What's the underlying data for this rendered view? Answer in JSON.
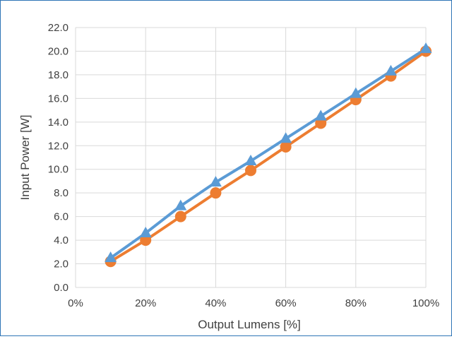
{
  "chart_data": {
    "type": "line",
    "title": "",
    "xlabel": "Output Lumens [%]",
    "ylabel": "Input Power [W]",
    "xlim": [
      0,
      100
    ],
    "ylim": [
      0,
      22
    ],
    "x_ticks": [
      "0%",
      "20%",
      "40%",
      "60%",
      "80%",
      "100%"
    ],
    "y_ticks": [
      "0.0",
      "2.0",
      "4.0",
      "6.0",
      "8.0",
      "10.0",
      "12.0",
      "14.0",
      "16.0",
      "18.0",
      "20.0",
      "22.0"
    ],
    "grid": true,
    "legend": "none",
    "x": [
      10,
      20,
      30,
      40,
      50,
      60,
      70,
      80,
      90,
      100
    ],
    "series": [
      {
        "marker": "circle",
        "color": "#ed7d31",
        "values": [
          2.2,
          4.0,
          6.0,
          8.0,
          9.9,
          11.9,
          13.9,
          15.9,
          17.9,
          20.0
        ]
      },
      {
        "marker": "triangle",
        "color": "#5b9bd5",
        "values": [
          2.5,
          4.6,
          6.9,
          8.9,
          10.7,
          12.6,
          14.5,
          16.4,
          18.3,
          20.2
        ]
      }
    ]
  }
}
